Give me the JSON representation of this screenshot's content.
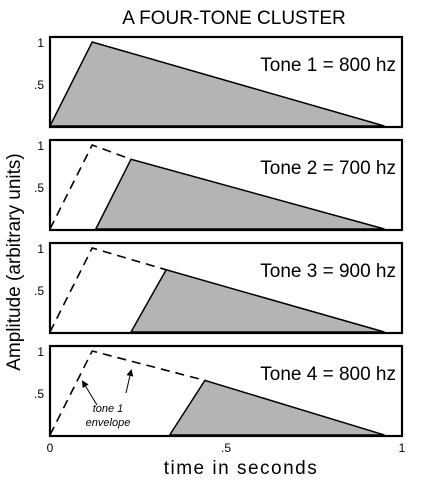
{
  "chart_data": {
    "type": "area",
    "title": "A FOUR-TONE CLUSTER",
    "xlabel": "time in seconds",
    "ylabel": "Amplitude (arbitrary units)",
    "xlim": [
      0,
      1
    ],
    "ylim": [
      0,
      1
    ],
    "x_ticks": [
      {
        "value": 0,
        "label": "0"
      },
      {
        "value": 0.5,
        "label": ".5"
      },
      {
        "value": 1,
        "label": "1"
      }
    ],
    "y_ticks": [
      {
        "value": 0.5,
        "label": ".5"
      },
      {
        "value": 1,
        "label": "1"
      }
    ],
    "fill_color": "#b4b4b4",
    "panels": [
      {
        "label": "Tone 1 = 800 hz",
        "envelope": [
          [
            0,
            0
          ],
          [
            0.12,
            1
          ],
          [
            0.95,
            0
          ]
        ],
        "reference_envelope": null
      },
      {
        "label": "Tone 2 = 700 hz",
        "envelope": [
          [
            0.13,
            0
          ],
          [
            0.23,
            0.83
          ],
          [
            0.95,
            0
          ]
        ],
        "reference_envelope": [
          [
            0,
            0
          ],
          [
            0.12,
            1
          ],
          [
            0.23,
            0.83
          ]
        ]
      },
      {
        "label": "Tone 3 = 900 hz",
        "envelope": [
          [
            0.23,
            0
          ],
          [
            0.33,
            0.74
          ],
          [
            0.95,
            0
          ]
        ],
        "reference_envelope": [
          [
            0,
            0
          ],
          [
            0.12,
            1
          ],
          [
            0.33,
            0.74
          ]
        ]
      },
      {
        "label": "Tone 4 = 800 hz",
        "envelope": [
          [
            0.34,
            0
          ],
          [
            0.44,
            0.65
          ],
          [
            0.95,
            0
          ]
        ],
        "reference_envelope": [
          [
            0,
            0
          ],
          [
            0.12,
            1
          ],
          [
            0.44,
            0.65
          ]
        ],
        "annotation": "tone 1\nenvelope"
      }
    ]
  }
}
